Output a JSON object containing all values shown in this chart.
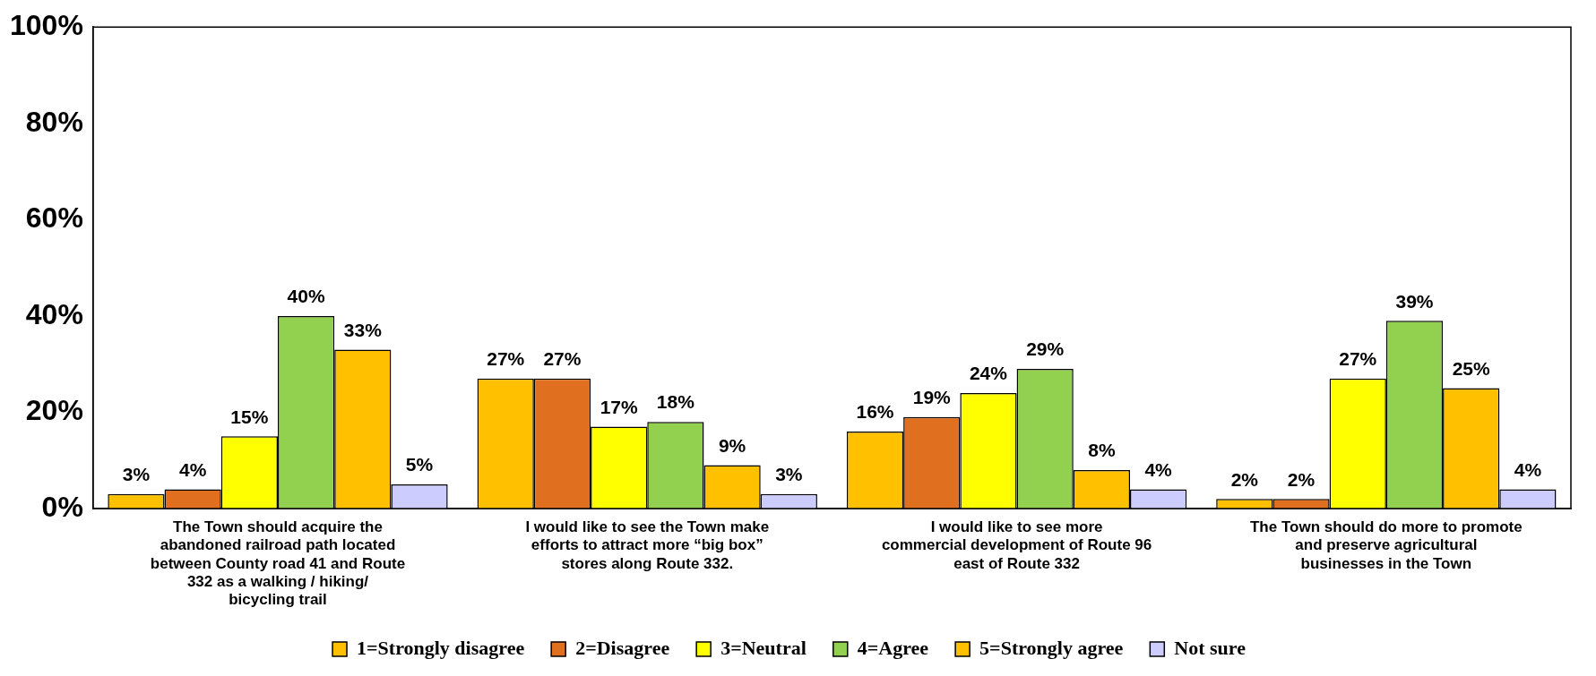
{
  "chart_data": {
    "type": "bar",
    "categories": [
      "The Town should acquire the abandoned railroad path located between County road 41 and Route 332 as a walking / hiking/ bicycling trail",
      "I would like to see the Town make efforts to attract more “big box” stores along Route 332.",
      "I would like to see more commercial development of Route 96 east of Route 332",
      "The Town should do more to promote and preserve agricultural businesses in the Town"
    ],
    "series": [
      {
        "name": "1=Strongly disagree",
        "color": "#ffc000",
        "values": [
          3,
          27,
          16,
          2
        ],
        "value_labels": [
          "3%",
          "27%",
          "16%",
          "2%"
        ]
      },
      {
        "name": "2=Disagree",
        "color": "#e07020",
        "values": [
          4,
          27,
          19,
          2
        ],
        "value_labels": [
          "4%",
          "27%",
          "19%",
          "2%"
        ]
      },
      {
        "name": "3=Neutral",
        "color": "#ffff00",
        "values": [
          15,
          17,
          24,
          27
        ],
        "value_labels": [
          "15%",
          "17%",
          "24%",
          "27%"
        ]
      },
      {
        "name": "4=Agree",
        "color": "#92d050",
        "values": [
          40,
          18,
          29,
          39
        ],
        "value_labels": [
          "40%",
          "18%",
          "29%",
          "39%"
        ]
      },
      {
        "name": "5=Strongly agree",
        "color": "#ffc000",
        "values": [
          33,
          9,
          8,
          25
        ],
        "value_labels": [
          "33%",
          "9%",
          "8%",
          "25%"
        ]
      },
      {
        "name": "Not sure",
        "color": "#ccccff",
        "values": [
          5,
          3,
          4,
          4
        ],
        "value_labels": [
          "5%",
          "3%",
          "4%",
          "4%"
        ]
      }
    ],
    "ylim": [
      0,
      100
    ],
    "yticks": [
      {
        "value": 0,
        "label": "0%"
      },
      {
        "value": 20,
        "label": "20%"
      },
      {
        "value": 40,
        "label": "40%"
      },
      {
        "value": 60,
        "label": "60%"
      },
      {
        "value": 80,
        "label": "80%"
      },
      {
        "value": 100,
        "label": "100%"
      }
    ],
    "grid": false,
    "legend": "bottom"
  }
}
